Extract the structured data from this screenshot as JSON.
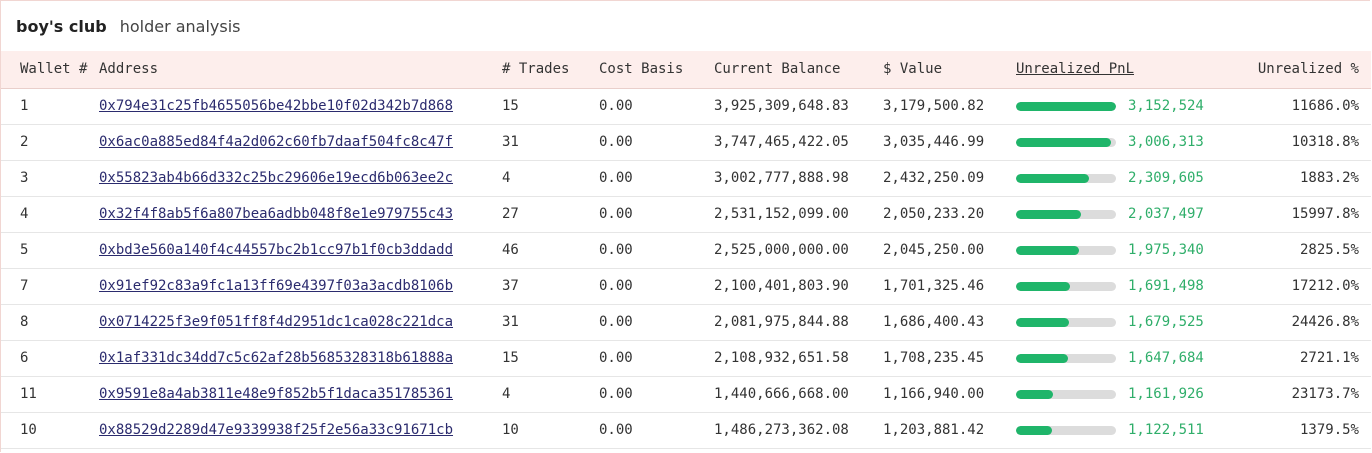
{
  "header": {
    "brand": "boy's club",
    "subtitle": "holder analysis"
  },
  "columns": {
    "wallet": "Wallet #",
    "address": "Address",
    "trades": "# Trades",
    "cost_basis": "Cost Basis",
    "current_balance": "Current Balance",
    "value": "$ Value",
    "unrealized_pnl": "Unrealized PnL",
    "unrealized_pct": "Unrealized %"
  },
  "colors": {
    "bar_fill": "#1fb56a",
    "bar_track": "#dcdcdc",
    "pnl_text": "#2fae6a",
    "header_bg": "#fdeeec"
  },
  "rows": [
    {
      "wallet": "1",
      "address": "0x794e31c25fb4655056be42bbe10f02d342b7d868",
      "trades": "15",
      "cost_basis": "0.00",
      "balance": "3,925,309,648.83",
      "value": "3,179,500.82",
      "pnl": "3,152,524",
      "pnl_fraction": 1.0,
      "pct": "11686.0%"
    },
    {
      "wallet": "2",
      "address": "0x6ac0a885ed84f4a2d062c60fb7daaf504fc8c47f",
      "trades": "31",
      "cost_basis": "0.00",
      "balance": "3,747,465,422.05",
      "value": "3,035,446.99",
      "pnl": "3,006,313",
      "pnl_fraction": 0.95,
      "pct": "10318.8%"
    },
    {
      "wallet": "3",
      "address": "0x55823ab4b66d332c25bc29606e19ecd6b063ee2c",
      "trades": "4",
      "cost_basis": "0.00",
      "balance": "3,002,777,888.98",
      "value": "2,432,250.09",
      "pnl": "2,309,605",
      "pnl_fraction": 0.73,
      "pct": "1883.2%"
    },
    {
      "wallet": "4",
      "address": "0x32f4f8ab5f6a807bea6adbb048f8e1e979755c43",
      "trades": "27",
      "cost_basis": "0.00",
      "balance": "2,531,152,099.00",
      "value": "2,050,233.20",
      "pnl": "2,037,497",
      "pnl_fraction": 0.65,
      "pct": "15997.8%"
    },
    {
      "wallet": "5",
      "address": "0xbd3e560a140f4c44557bc2b1cc97b1f0cb3ddadd",
      "trades": "46",
      "cost_basis": "0.00",
      "balance": "2,525,000,000.00",
      "value": "2,045,250.00",
      "pnl": "1,975,340",
      "pnl_fraction": 0.63,
      "pct": "2825.5%"
    },
    {
      "wallet": "7",
      "address": "0x91ef92c83a9fc1a13ff69e4397f03a3acdb8106b",
      "trades": "37",
      "cost_basis": "0.00",
      "balance": "2,100,401,803.90",
      "value": "1,701,325.46",
      "pnl": "1,691,498",
      "pnl_fraction": 0.54,
      "pct": "17212.0%"
    },
    {
      "wallet": "8",
      "address": "0x0714225f3e9f051ff8f4d2951dc1ca028c221dca",
      "trades": "31",
      "cost_basis": "0.00",
      "balance": "2,081,975,844.88",
      "value": "1,686,400.43",
      "pnl": "1,679,525",
      "pnl_fraction": 0.53,
      "pct": "24426.8%"
    },
    {
      "wallet": "6",
      "address": "0x1af331dc34dd7c5c62af28b5685328318b61888a",
      "trades": "15",
      "cost_basis": "0.00",
      "balance": "2,108,932,651.58",
      "value": "1,708,235.45",
      "pnl": "1,647,684",
      "pnl_fraction": 0.52,
      "pct": "2721.1%"
    },
    {
      "wallet": "11",
      "address": "0x9591e8a4ab3811e48e9f852b5f1daca351785361",
      "trades": "4",
      "cost_basis": "0.00",
      "balance": "1,440,666,668.00",
      "value": "1,166,940.00",
      "pnl": "1,161,926",
      "pnl_fraction": 0.37,
      "pct": "23173.7%"
    },
    {
      "wallet": "10",
      "address": "0x88529d2289d47e9339938f25f2e56a33c91671cb",
      "trades": "10",
      "cost_basis": "0.00",
      "balance": "1,486,273,362.08",
      "value": "1,203,881.42",
      "pnl": "1,122,511",
      "pnl_fraction": 0.356,
      "pct": "1379.5%"
    }
  ]
}
